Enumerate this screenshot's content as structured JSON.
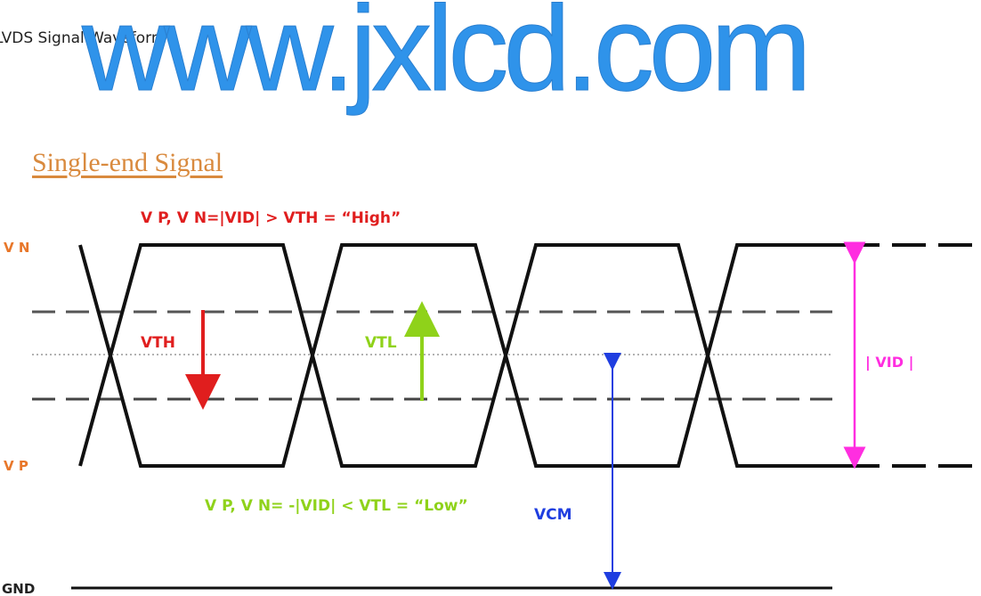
{
  "caption": "LVDS Signal Waveform",
  "watermark": "www.jxlcd.com",
  "diagram": {
    "title": "Single-end Signal",
    "high_condition": "V P, V N=|VID| > VTH = “High”",
    "low_condition": "V P, V N= -|VID| < VTL = “Low”",
    "labels": {
      "vn": "V N",
      "vp": "V P",
      "vth": "VTH",
      "vtl": "VTL",
      "vcm": "VCM",
      "vid": "| VID |",
      "gnd": "GND"
    },
    "colors": {
      "title": "#d98a3e",
      "level_labels": "#e8772a",
      "high": "#e01e1e",
      "low": "#8fd21a",
      "vcm": "#1f3ee0",
      "vid": "#ff2ee0",
      "waveform": "#111111",
      "watermark": "#2f93ea"
    }
  }
}
